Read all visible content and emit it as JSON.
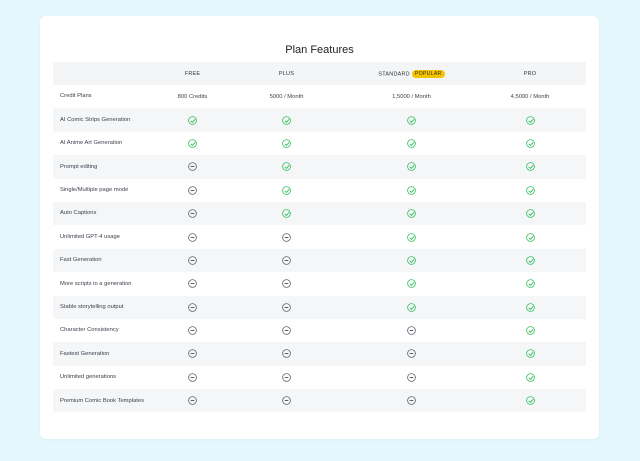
{
  "title": "Plan Features",
  "colors": {
    "check": "#2ebd59",
    "dash": "#5a5f6a",
    "badge": "#f5c400"
  },
  "plans": [
    {
      "label": "FREE"
    },
    {
      "label": "PLUS"
    },
    {
      "label": "STANDARD",
      "badge": "POPULAR"
    },
    {
      "label": "PRO"
    }
  ],
  "credits": {
    "label": "Credit Plans",
    "values": [
      "800 Credits",
      "5000 / Month",
      "1,5000 / Month",
      "4,5000 / Month"
    ]
  },
  "features": [
    {
      "label": "AI Comic Strips Generation",
      "values": [
        "check",
        "check",
        "check",
        "check"
      ]
    },
    {
      "label": "AI Anime Art Generation",
      "values": [
        "check",
        "check",
        "check",
        "check"
      ]
    },
    {
      "label": "Prompt editing",
      "values": [
        "dash",
        "check",
        "check",
        "check"
      ]
    },
    {
      "label": "Single/Multiple page mode",
      "values": [
        "dash",
        "check",
        "check",
        "check"
      ]
    },
    {
      "label": "Auto Captions",
      "values": [
        "dash",
        "check",
        "check",
        "check"
      ]
    },
    {
      "label": "Unlimited GPT-4 usage",
      "values": [
        "dash",
        "dash",
        "check",
        "check"
      ]
    },
    {
      "label": "Fast Generation",
      "values": [
        "dash",
        "dash",
        "check",
        "check"
      ]
    },
    {
      "label": "More scripts in a generation",
      "values": [
        "dash",
        "dash",
        "check",
        "check"
      ]
    },
    {
      "label": "Stable storytelling output",
      "values": [
        "dash",
        "dash",
        "check",
        "check"
      ]
    },
    {
      "label": "Character Consistency",
      "values": [
        "dash",
        "dash",
        "dash",
        "check"
      ]
    },
    {
      "label": "Fastest Generation",
      "values": [
        "dash",
        "dash",
        "dash",
        "check"
      ]
    },
    {
      "label": "Unlimited generations",
      "values": [
        "dash",
        "dash",
        "dash",
        "check"
      ]
    },
    {
      "label": "Premium Comic Book Templates",
      "values": [
        "dash",
        "dash",
        "dash",
        "check"
      ]
    }
  ]
}
